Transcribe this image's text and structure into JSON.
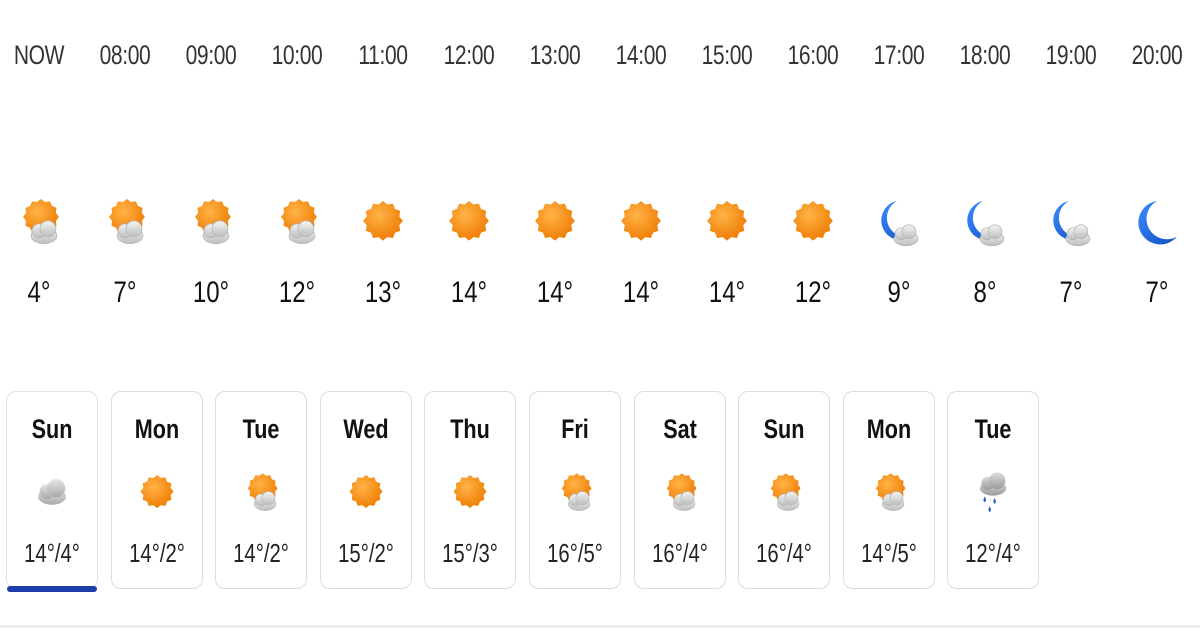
{
  "hourly": [
    {
      "time": "NOW",
      "icon": "partly-cloudy-icon",
      "temp": "4°"
    },
    {
      "time": "08:00",
      "icon": "partly-cloudy-icon",
      "temp": "7°"
    },
    {
      "time": "09:00",
      "icon": "partly-cloudy-icon",
      "temp": "10°"
    },
    {
      "time": "10:00",
      "icon": "partly-cloudy-icon",
      "temp": "12°"
    },
    {
      "time": "11:00",
      "icon": "sun-icon",
      "temp": "13°"
    },
    {
      "time": "12:00",
      "icon": "sun-icon",
      "temp": "14°"
    },
    {
      "time": "13:00",
      "icon": "sun-icon",
      "temp": "14°"
    },
    {
      "time": "14:00",
      "icon": "sun-icon",
      "temp": "14°"
    },
    {
      "time": "15:00",
      "icon": "sun-icon",
      "temp": "14°"
    },
    {
      "time": "16:00",
      "icon": "sun-icon",
      "temp": "12°"
    },
    {
      "time": "17:00",
      "icon": "moon-cloud-icon",
      "temp": "9°"
    },
    {
      "time": "18:00",
      "icon": "moon-cloud-icon",
      "temp": "8°"
    },
    {
      "time": "19:00",
      "icon": "moon-cloud-icon",
      "temp": "7°"
    },
    {
      "time": "20:00",
      "icon": "moon-icon",
      "temp": "7°"
    }
  ],
  "daily": [
    {
      "day": "Sun",
      "icon": "cloud-icon",
      "range": "14°/4°",
      "selected": true
    },
    {
      "day": "Mon",
      "icon": "sun-icon",
      "range": "14°/2°"
    },
    {
      "day": "Tue",
      "icon": "partly-cloudy-icon",
      "range": "14°/2°"
    },
    {
      "day": "Wed",
      "icon": "sun-icon",
      "range": "15°/2°"
    },
    {
      "day": "Thu",
      "icon": "sun-icon",
      "range": "15°/3°"
    },
    {
      "day": "Fri",
      "icon": "partly-cloudy-icon",
      "range": "16°/5°"
    },
    {
      "day": "Sat",
      "icon": "partly-cloudy-icon",
      "range": "16°/4°"
    },
    {
      "day": "Sun",
      "icon": "partly-cloudy-icon",
      "range": "16°/4°"
    },
    {
      "day": "Mon",
      "icon": "partly-cloudy-icon",
      "range": "14°/5°"
    },
    {
      "day": "Tue",
      "icon": "rain-icon",
      "range": "12°/4°"
    }
  ],
  "colors": {
    "sun": "#f28c10",
    "moon": "#1e6fd9",
    "cloud": "#c9c9c9",
    "rain": "#1f5fc4",
    "selected_underline": "#1b3ea8"
  }
}
